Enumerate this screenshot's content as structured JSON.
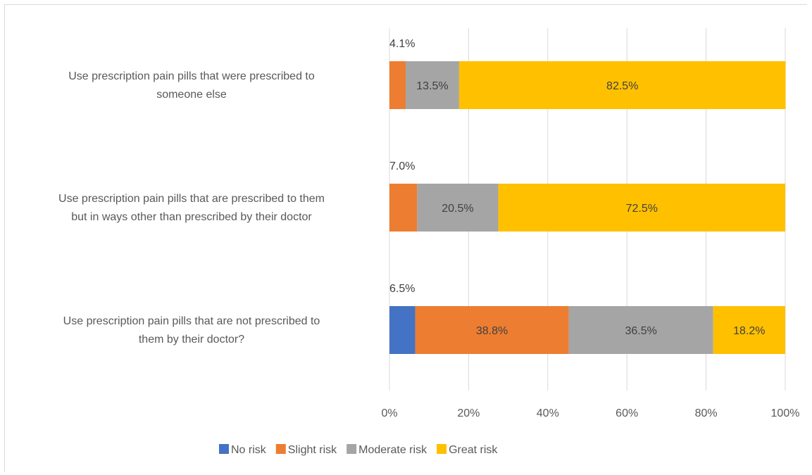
{
  "chart_data": {
    "type": "bar",
    "orientation": "horizontal",
    "stacked": true,
    "categories": [
      [
        "Use prescription pain pills that were prescribed to",
        "someone else"
      ],
      [
        "Use prescription pain pills that are prescribed to them",
        "but in ways other than prescribed by their doctor"
      ],
      [
        "Use prescription pain pills that are not prescribed to",
        "them by their doctor?"
      ]
    ],
    "series": [
      {
        "name": "No risk",
        "color": "#4472C4",
        "values": [
          0,
          0,
          6.5
        ],
        "labels": [
          "",
          "",
          "6.5%"
        ]
      },
      {
        "name": "Slight risk",
        "color": "#ED7D31",
        "values": [
          4.1,
          7.0,
          38.8
        ],
        "labels": [
          "4.1%",
          "7.0%",
          "38.8%"
        ]
      },
      {
        "name": "Moderate risk",
        "color": "#A5A5A5",
        "values": [
          13.5,
          20.5,
          36.5
        ],
        "labels": [
          "13.5%",
          "20.5%",
          "36.5%"
        ]
      },
      {
        "name": "Great risk",
        "color": "#FFC000",
        "values": [
          82.5,
          72.5,
          18.2
        ],
        "labels": [
          "82.5%",
          "72.5%",
          "18.2%"
        ]
      }
    ],
    "xlim": [
      0,
      100
    ],
    "x_ticks": [
      "0%",
      "20%",
      "40%",
      "60%",
      "80%",
      "100%"
    ],
    "grid": true,
    "legend_position": "bottom"
  }
}
